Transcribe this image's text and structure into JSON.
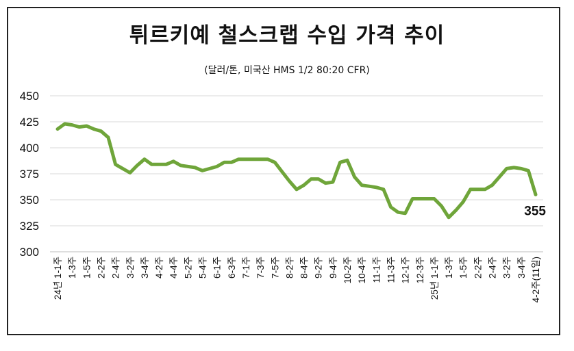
{
  "chart_data": {
    "type": "line",
    "title": "튀르키예 철스크랩 수입 가격 추이",
    "subtitle": "(달러/톤, 미국산 HMS 1/2 80:20 CFR)",
    "ylim": [
      300,
      450
    ],
    "yticks": [
      300,
      325,
      350,
      375,
      400,
      425,
      450
    ],
    "grid": true,
    "line_color": "#6fa53a",
    "last_value_label": "355",
    "series": [
      {
        "values": [
          418,
          423,
          422,
          420,
          421,
          418,
          416,
          410,
          384,
          380,
          376,
          383,
          389,
          384,
          384,
          384,
          387,
          383,
          382,
          381,
          378,
          380,
          382,
          386,
          386,
          389,
          389,
          389,
          389,
          389,
          386,
          377,
          368,
          360,
          364,
          370,
          370,
          366,
          367,
          386,
          388,
          372,
          364,
          363,
          362,
          360,
          343,
          338,
          337,
          351,
          351,
          351,
          351,
          344,
          333,
          340,
          348,
          360,
          360,
          360,
          364,
          372,
          380,
          381,
          380,
          378,
          355
        ]
      }
    ],
    "x_labels": [
      {
        "i": 0,
        "text": "24년 1-1주"
      },
      {
        "i": 2,
        "text": "1-3주"
      },
      {
        "i": 4,
        "text": "1-5주"
      },
      {
        "i": 6,
        "text": "2-2주"
      },
      {
        "i": 8,
        "text": "2-4주"
      },
      {
        "i": 10,
        "text": "3-2주"
      },
      {
        "i": 12,
        "text": "3-4주"
      },
      {
        "i": 14,
        "text": "4-2주"
      },
      {
        "i": 16,
        "text": "4-4주"
      },
      {
        "i": 18,
        "text": "5-2주"
      },
      {
        "i": 20,
        "text": "5-4주"
      },
      {
        "i": 22,
        "text": "6-1주"
      },
      {
        "i": 24,
        "text": "6-3주"
      },
      {
        "i": 26,
        "text": "7-1주"
      },
      {
        "i": 28,
        "text": "7-3주"
      },
      {
        "i": 30,
        "text": "7-5주"
      },
      {
        "i": 32,
        "text": "8-2주"
      },
      {
        "i": 34,
        "text": "8-4주"
      },
      {
        "i": 36,
        "text": "9-2주"
      },
      {
        "i": 38,
        "text": "9-4주"
      },
      {
        "i": 40,
        "text": "10-2주"
      },
      {
        "i": 42,
        "text": "10-4주"
      },
      {
        "i": 44,
        "text": "11-1주"
      },
      {
        "i": 46,
        "text": "11-3주"
      },
      {
        "i": 48,
        "text": "12-1주"
      },
      {
        "i": 50,
        "text": "12-3주"
      },
      {
        "i": 52,
        "text": "25년 1-1주"
      },
      {
        "i": 54,
        "text": "1-3주"
      },
      {
        "i": 56,
        "text": "1-5주"
      },
      {
        "i": 58,
        "text": "2-2주"
      },
      {
        "i": 60,
        "text": "2-4주"
      },
      {
        "i": 62,
        "text": "3-2주"
      },
      {
        "i": 64,
        "text": "3-4주"
      },
      {
        "i": 66,
        "text": "4-2주(11일)"
      }
    ]
  }
}
